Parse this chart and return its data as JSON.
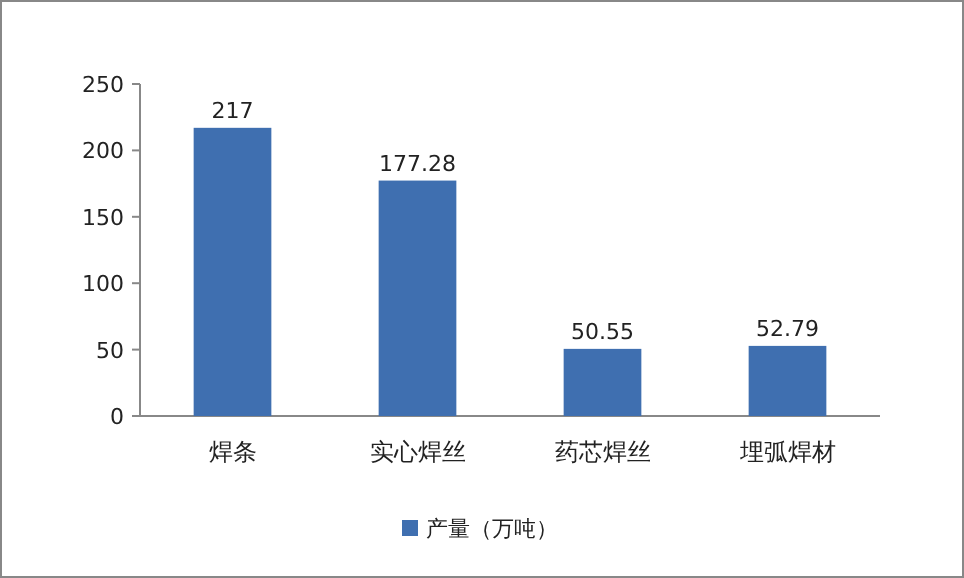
{
  "chart_data": {
    "type": "bar",
    "categories": [
      "焊条",
      "实心焊丝",
      "药芯焊丝",
      "埋弧焊材"
    ],
    "series": [
      {
        "name": "产量（万吨）",
        "color": "#3f6fb0",
        "values": [
          217,
          177.28,
          50.55,
          52.79
        ]
      }
    ],
    "ylim": [
      0,
      250
    ],
    "yticks": [
      0,
      50,
      100,
      150,
      200,
      250
    ],
    "data_labels": true,
    "legend": "bottom",
    "grid": false
  }
}
